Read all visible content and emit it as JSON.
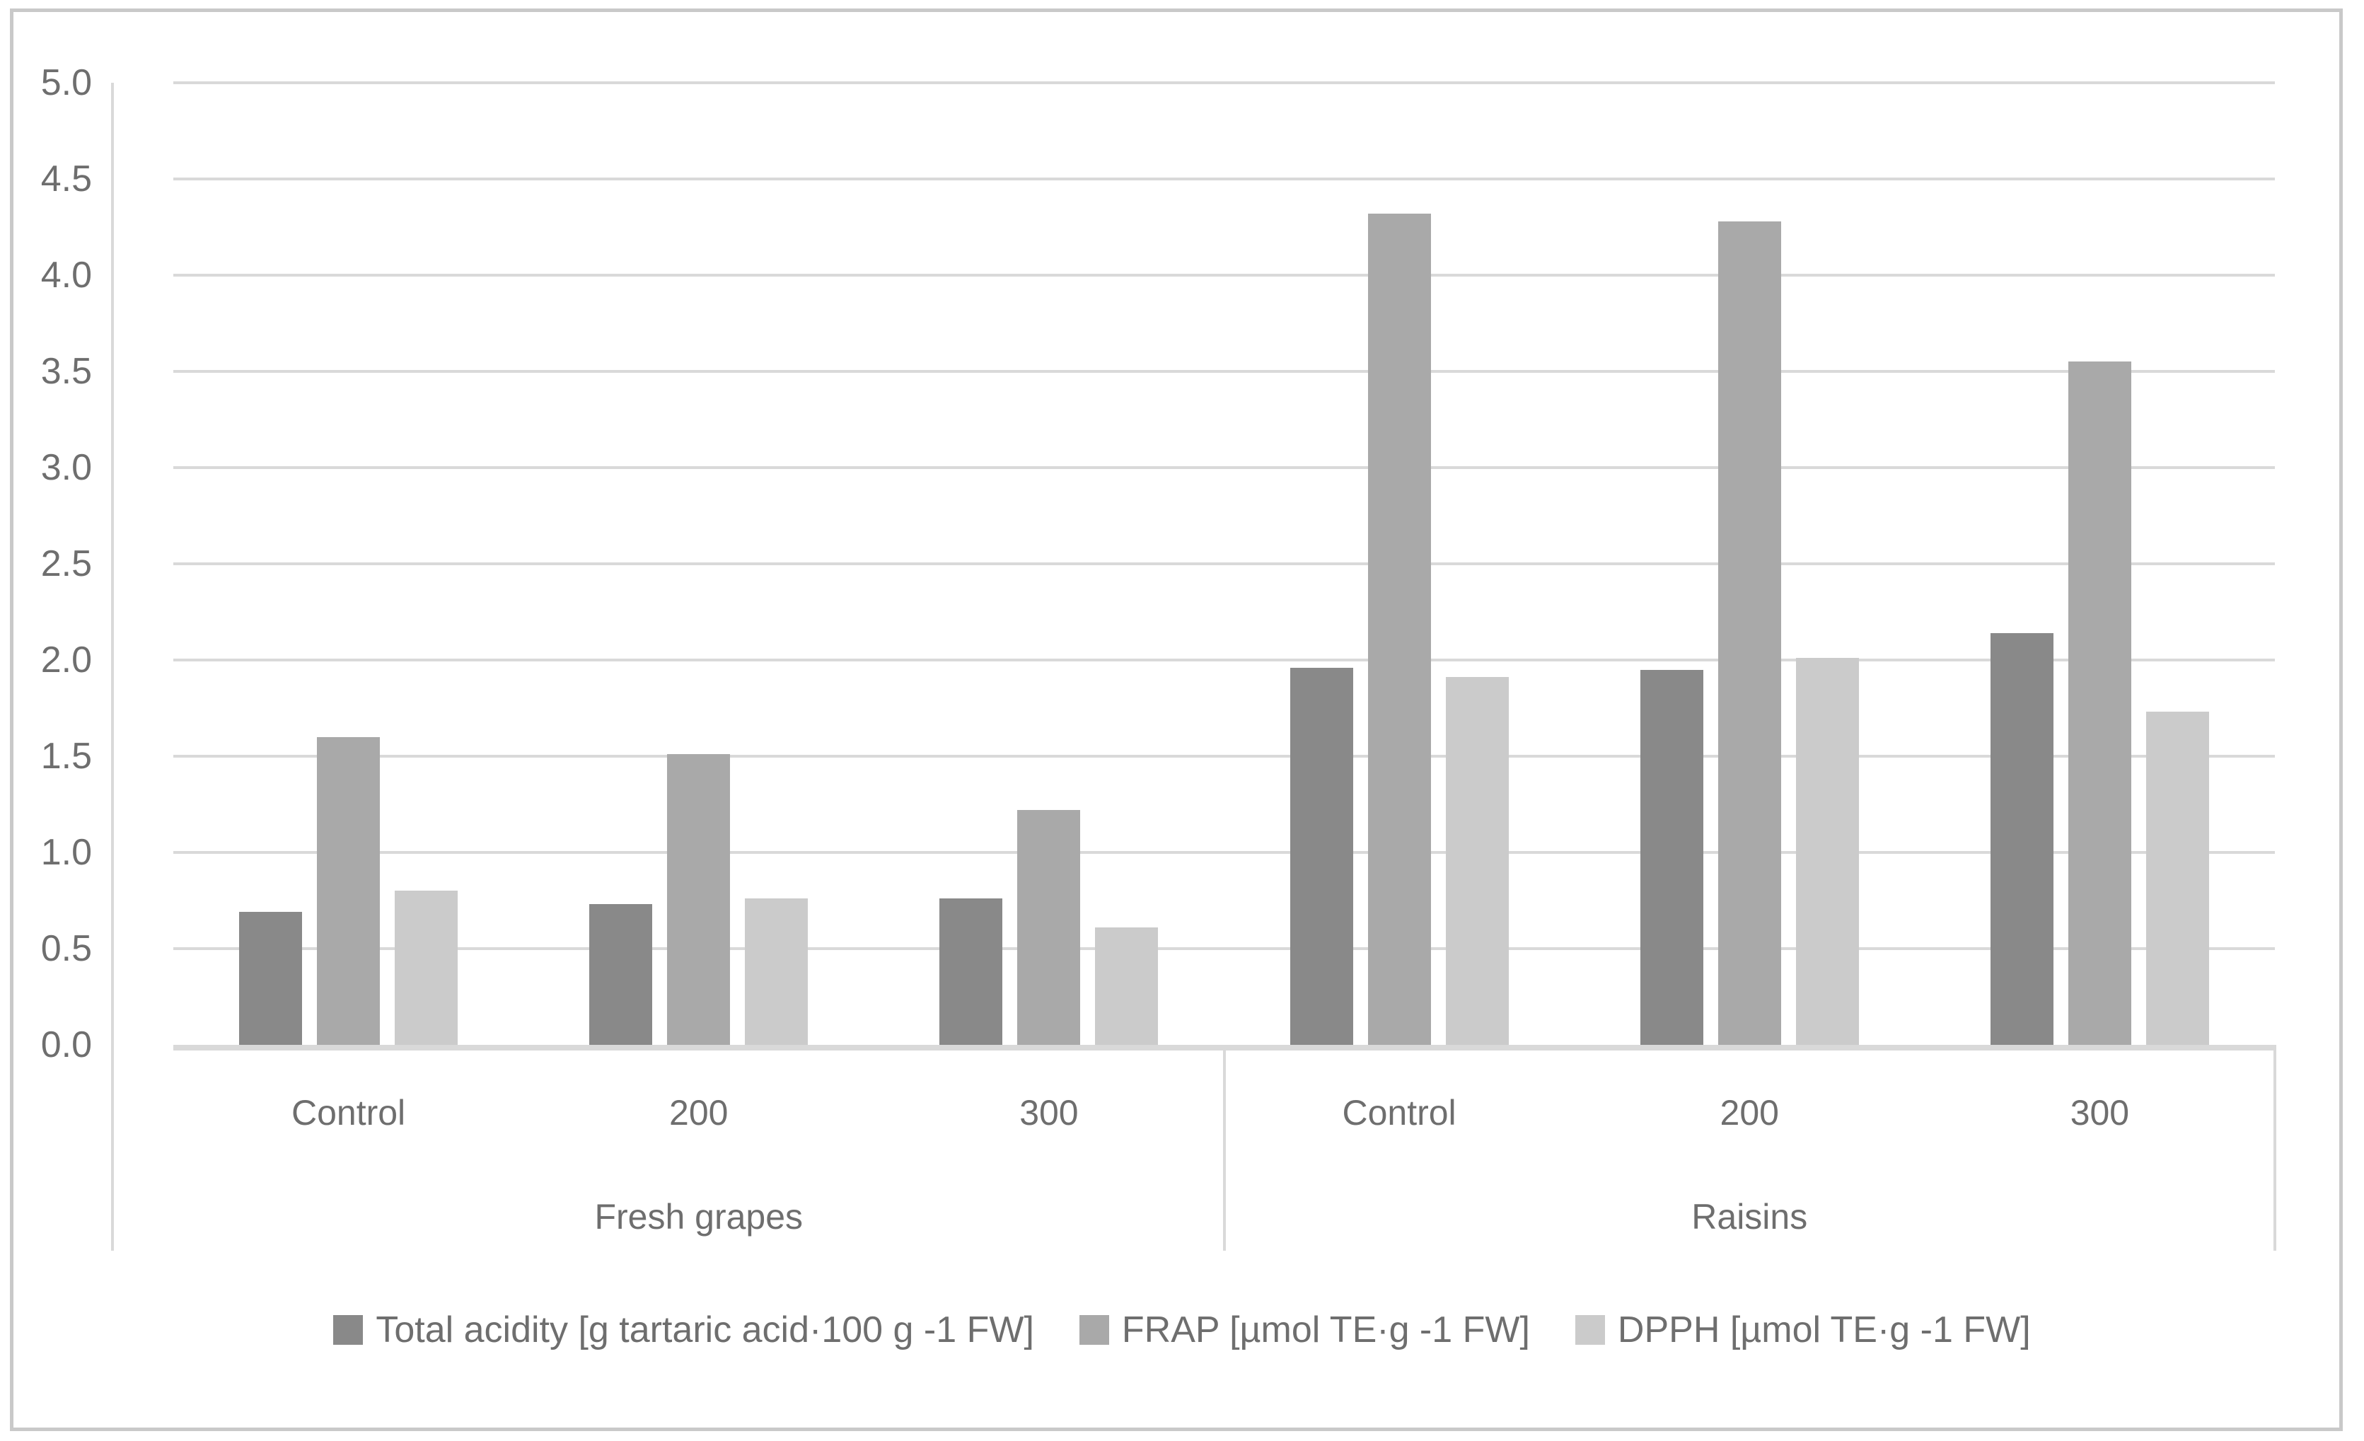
{
  "chart_data": {
    "type": "bar",
    "title": "",
    "xlabel": "",
    "ylabel": "",
    "ylim": [
      0.0,
      5.0
    ],
    "y_tick_step": 0.5,
    "y_tick_labels": [
      "0.0",
      "0.5",
      "1.0",
      "1.5",
      "2.0",
      "2.5",
      "3.0",
      "3.5",
      "4.0",
      "4.5",
      "5.0"
    ],
    "grid": "horizontal",
    "legend_position": "bottom",
    "categories": [
      "Control",
      "200",
      "300",
      "Control",
      "200",
      "300"
    ],
    "groups": [
      {
        "label": "Fresh grapes",
        "from": 0,
        "to": 2
      },
      {
        "label": "Raisins",
        "from": 3,
        "to": 5
      }
    ],
    "series": [
      {
        "name": "Total acidity [g tartaric acid·100 g -1 FW]",
        "color": "#898989",
        "values": [
          0.69,
          0.73,
          0.76,
          1.96,
          1.95,
          2.14
        ]
      },
      {
        "name": "FRAP [µmol TE·g -1 FW]",
        "color": "#a9a9a9",
        "values": [
          1.6,
          1.51,
          1.22,
          4.32,
          4.28,
          3.55
        ]
      },
      {
        "name": "DPPH [µmol TE·g -1 FW]",
        "color": "#cbcbcb",
        "values": [
          0.8,
          0.76,
          0.61,
          1.91,
          2.01,
          1.73
        ]
      }
    ],
    "colors": {
      "gridline": "#d9d9d9",
      "axis_text": "#6e6e6e",
      "figure_border": "#c9c9c9",
      "background": "#ffffff"
    }
  }
}
